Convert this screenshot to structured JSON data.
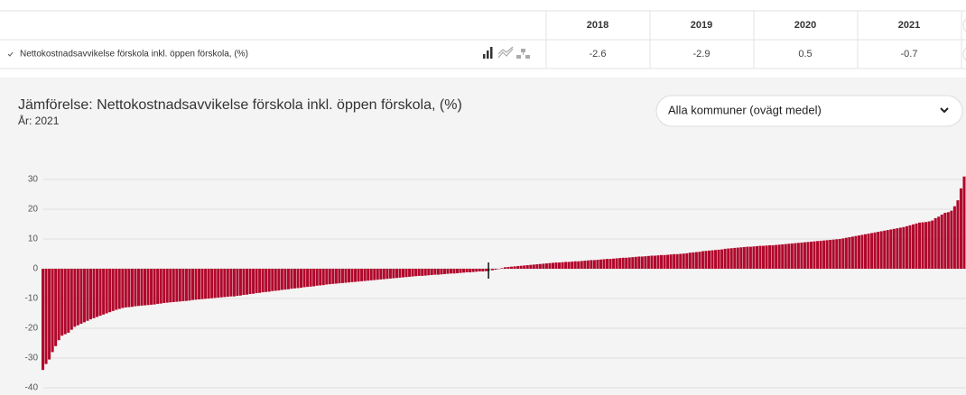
{
  "table": {
    "columns": [
      2018,
      2019,
      2020,
      2021
    ],
    "rows": [
      {
        "label": "Nettokostnadsavvikelse förskola inkl. öppen förskola, (%)",
        "values": [
          -2.6,
          -2.9,
          0.5,
          -0.7
        ]
      }
    ]
  },
  "chart_data": {
    "type": "bar",
    "title": "Jämförelse: Nettokostnadsavvikelse förskola inkl. öppen förskola, (%)",
    "subtitle": "År: 2021",
    "dropdown": "Alla kommuner (ovägt medel)",
    "color": "#b0082c",
    "highlight_index": 140,
    "highlight_color": "#111111",
    "ylim": [
      -42,
      34
    ],
    "yticks": [
      -40,
      -30,
      -20,
      -10,
      0,
      10,
      20,
      30
    ],
    "grid": true,
    "values": [
      -34,
      -32,
      -30.5,
      -28,
      -26,
      -24,
      -22.5,
      -22,
      -21.5,
      -20.5,
      -19.5,
      -19,
      -18.5,
      -18,
      -17.5,
      -17,
      -16.6,
      -16.2,
      -15.8,
      -15.4,
      -15,
      -14.6,
      -14.2,
      -13.8,
      -13.5,
      -13.2,
      -13,
      -12.9,
      -12.8,
      -12.6,
      -12.5,
      -12.4,
      -12.3,
      -12.2,
      -12.1,
      -12,
      -11.8,
      -11.7,
      -11.5,
      -11.4,
      -11.3,
      -11.2,
      -11.1,
      -11,
      -10.9,
      -10.8,
      -10.7,
      -10.5,
      -10.4,
      -10.3,
      -10.2,
      -10.1,
      -10,
      -9.9,
      -9.8,
      -9.7,
      -9.6,
      -9.5,
      -9.4,
      -9.3,
      -9.3,
      -9.1,
      -9,
      -8.8,
      -8.7,
      -8.5,
      -8.4,
      -8.2,
      -8.1,
      -7.9,
      -7.8,
      -7.7,
      -7.5,
      -7.4,
      -7.3,
      -7.1,
      -7,
      -6.9,
      -6.7,
      -6.6,
      -6.5,
      -6.4,
      -6.2,
      -6.1,
      -6,
      -5.9,
      -5.7,
      -5.6,
      -5.5,
      -5.3,
      -5.2,
      -5.1,
      -5,
      -4.9,
      -4.8,
      -4.7,
      -4.6,
      -4.5,
      -4.4,
      -4.3,
      -4.2,
      -4.1,
      -4,
      -3.9,
      -3.8,
      -3.7,
      -3.6,
      -3.5,
      -3.4,
      -3.3,
      -3.2,
      -3.1,
      -3,
      -2.9,
      -2.8,
      -2.7,
      -2.6,
      -2.5,
      -2.4,
      -2.4,
      -2.3,
      -2.2,
      -2.1,
      -2,
      -2,
      -1.9,
      -1.8,
      -1.7,
      -1.6,
      -1.6,
      -1.5,
      -1.4,
      -1.3,
      -1.2,
      -1.2,
      -1.1,
      -1,
      -0.9,
      -0.9,
      -0.8,
      -0.7,
      -0.5,
      -0.3,
      -0.1,
      0.2,
      0.5,
      0.6,
      0.7,
      0.8,
      0.9,
      1,
      1.1,
      1.2,
      1.3,
      1.4,
      1.5,
      1.6,
      1.7,
      1.8,
      1.9,
      2,
      2.1,
      2.1,
      2.2,
      2.3,
      2.3,
      2.4,
      2.5,
      2.5,
      2.6,
      2.7,
      2.8,
      2.9,
      2.9,
      3,
      3.1,
      3.2,
      3.3,
      3.3,
      3.4,
      3.5,
      3.6,
      3.7,
      3.7,
      3.8,
      3.9,
      4,
      4.1,
      4.1,
      4.2,
      4.3,
      4.4,
      4.4,
      4.5,
      4.6,
      4.6,
      4.7,
      4.8,
      4.9,
      4.9,
      5,
      5.1,
      5.2,
      5.4,
      5.5,
      5.6,
      5.7,
      5.9,
      6,
      6.1,
      6.2,
      6.3,
      6.4,
      6.5,
      6.7,
      6.8,
      6.9,
      7,
      7.1,
      7.2,
      7.3,
      7.4,
      7.4,
      7.5,
      7.6,
      7.7,
      7.7,
      7.8,
      7.9,
      7.9,
      8,
      8.1,
      8.2,
      8.3,
      8.4,
      8.5,
      8.6,
      8.7,
      8.8,
      8.9,
      9,
      9.1,
      9.2,
      9.3,
      9.4,
      9.5,
      9.6,
      9.7,
      9.8,
      9.9,
      10,
      10.2,
      10.4,
      10.6,
      10.8,
      11,
      11.2,
      11.4,
      11.6,
      11.8,
      12,
      12.2,
      12.4,
      12.6,
      12.8,
      13,
      13.2,
      13.4,
      13.6,
      13.8,
      14,
      14.3,
      14.6,
      14.9,
      15.2,
      15.5,
      15.6,
      15.7,
      15.9,
      16.2,
      17,
      17.5,
      18.2,
      18.8,
      19,
      19.5,
      21,
      23,
      27,
      31
    ]
  }
}
